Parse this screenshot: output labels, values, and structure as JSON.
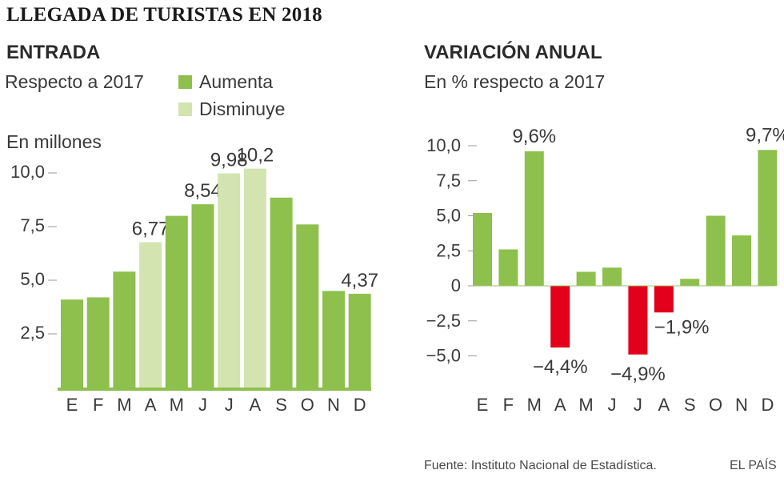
{
  "title": "LLEGADA DE TURISTAS EN 2018",
  "left_panel": {
    "heading": "ENTRADA",
    "subheading": "Respecto a 2017",
    "unit_label": "En millones",
    "legend": [
      {
        "label": "Aumenta",
        "color": "#8dc04d"
      },
      {
        "label": "Disminuye",
        "color": "#d3e4b0"
      }
    ]
  },
  "right_panel": {
    "heading": "VARIACIÓN ANUAL",
    "subheading": "En % respecto a 2017"
  },
  "footer": {
    "source": "Fuente: Instituto Nacional de Estadística.",
    "brand": "EL PAÍS"
  },
  "colors": {
    "increase": "#8dc04d",
    "decrease_light": "#d3e4b0",
    "negative": "#e2001a",
    "axis_text": "#3a3a3a"
  },
  "chart_data": [
    {
      "type": "bar",
      "title": "ENTRADA",
      "subtitle": "Respecto a 2017",
      "ylabel": "En millones",
      "categories": [
        "E",
        "F",
        "M",
        "A",
        "M",
        "J",
        "J",
        "A",
        "S",
        "O",
        "N",
        "D"
      ],
      "values": [
        4.1,
        4.2,
        5.4,
        6.77,
        8.0,
        8.54,
        9.98,
        10.2,
        8.85,
        7.6,
        4.5,
        4.37
      ],
      "status": [
        "up",
        "up",
        "up",
        "down",
        "up",
        "up",
        "down",
        "down",
        "up",
        "up",
        "up",
        "up"
      ],
      "data_labels": [
        null,
        null,
        null,
        "6,77",
        null,
        "8,54",
        "9,98",
        "10,2",
        null,
        null,
        null,
        "4,37"
      ],
      "yticks": [
        {
          "value": 2.5,
          "label": "2,5"
        },
        {
          "value": 5.0,
          "label": "5,0"
        },
        {
          "value": 7.5,
          "label": "7,5"
        },
        {
          "value": 10.0,
          "label": "10,0"
        }
      ],
      "ylim": [
        0,
        10.2
      ]
    },
    {
      "type": "bar",
      "title": "VARIACIÓN ANUAL",
      "subtitle": "En % respecto a 2017",
      "ylabel": "%",
      "categories": [
        "E",
        "F",
        "M",
        "A",
        "M",
        "J",
        "J",
        "A",
        "S",
        "O",
        "N",
        "D"
      ],
      "values": [
        5.2,
        2.6,
        9.6,
        -4.4,
        1.0,
        1.3,
        -4.9,
        -1.9,
        0.5,
        5.0,
        3.6,
        9.7
      ],
      "data_labels": [
        null,
        null,
        "9,6%",
        "−4,4%",
        null,
        null,
        "−4,9%",
        "−1,9%",
        null,
        null,
        null,
        "9,7%"
      ],
      "yticks": [
        {
          "value": -5.0,
          "label": "−5,0"
        },
        {
          "value": -2.5,
          "label": "−2,5"
        },
        {
          "value": 0,
          "label": "0"
        },
        {
          "value": 2.5,
          "label": "2,5"
        },
        {
          "value": 5.0,
          "label": "5,0"
        },
        {
          "value": 7.5,
          "label": "7,5"
        },
        {
          "value": 10.0,
          "label": "10,0"
        }
      ],
      "ylim": [
        -5.0,
        10.0
      ]
    }
  ]
}
